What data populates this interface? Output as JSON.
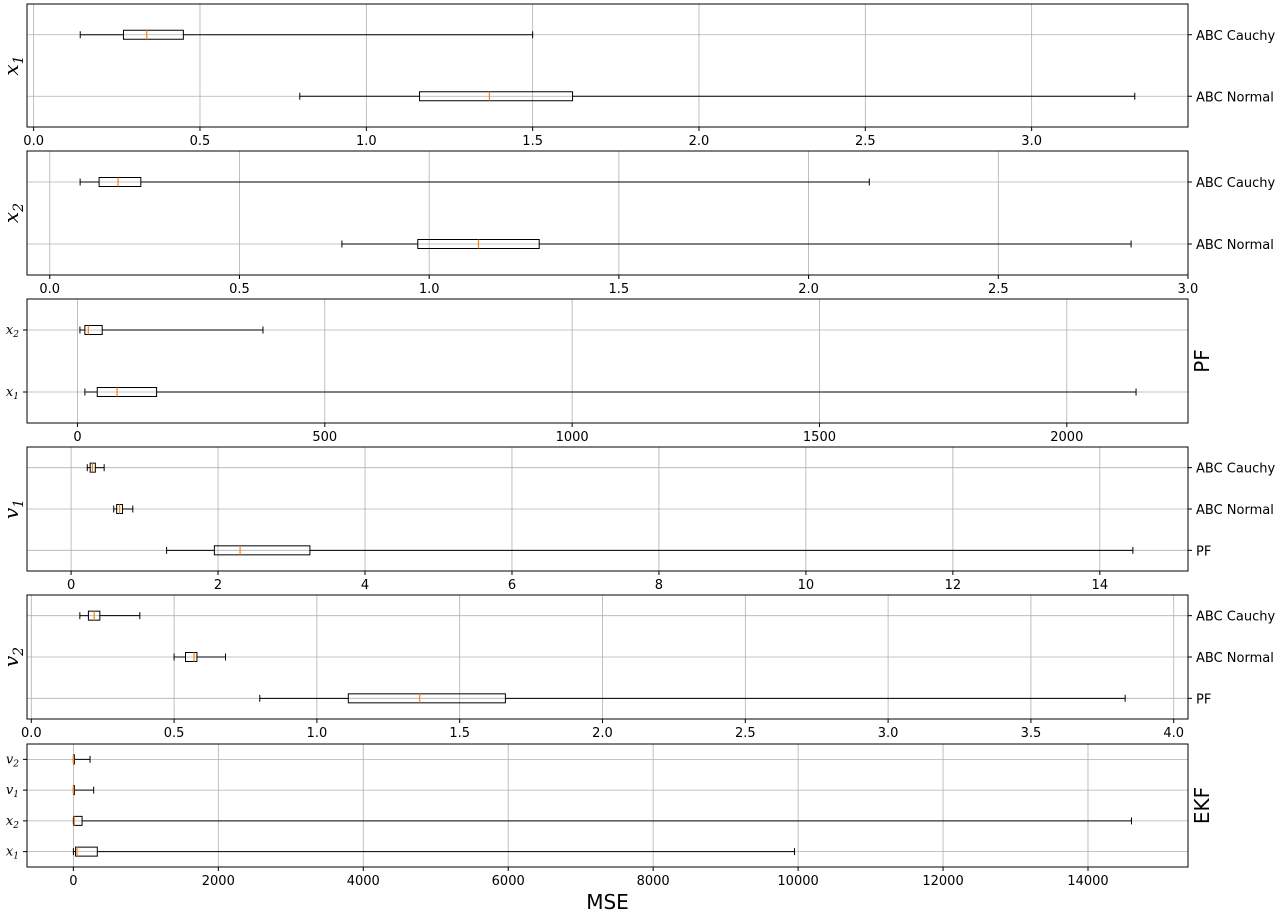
{
  "chart_data": [
    {
      "type": "boxplot",
      "orientation": "horizontal",
      "ylabel": "x",
      "ylabel_sub": "1",
      "ylabel_side": "left",
      "category_side": "right",
      "categories": [
        "ABC Normal",
        "ABC Cauchy"
      ],
      "xlim": [
        -0.02,
        3.47
      ],
      "xticks": [
        0.0,
        0.5,
        1.0,
        1.5,
        2.0,
        2.5,
        3.0
      ],
      "xtick_labels": [
        "0.0",
        "0.5",
        "1.0",
        "1.5",
        "2.0",
        "2.5",
        "3.0"
      ],
      "boxes": [
        {
          "label": "ABC Normal",
          "whisker_low": 0.8,
          "q1": 1.16,
          "median": 1.37,
          "q3": 1.62,
          "whisker_high": 3.31
        },
        {
          "label": "ABC Cauchy",
          "whisker_low": 0.14,
          "q1": 0.27,
          "median": 0.34,
          "q3": 0.45,
          "whisker_high": 1.5
        }
      ],
      "grid": true
    },
    {
      "type": "boxplot",
      "orientation": "horizontal",
      "ylabel": "x",
      "ylabel_sub": "2",
      "ylabel_side": "left",
      "category_side": "right",
      "categories": [
        "ABC Normal",
        "ABC Cauchy"
      ],
      "xlim": [
        -0.06,
        3.0
      ],
      "xticks": [
        0.0,
        0.5,
        1.0,
        1.5,
        2.0,
        2.5,
        3.0
      ],
      "xtick_labels": [
        "0.0",
        "0.5",
        "1.0",
        "1.5",
        "2.0",
        "2.5",
        "3.0"
      ],
      "boxes": [
        {
          "label": "ABC Normal",
          "whisker_low": 0.77,
          "q1": 0.97,
          "median": 1.13,
          "q3": 1.29,
          "whisker_high": 2.85
        },
        {
          "label": "ABC Cauchy",
          "whisker_low": 0.08,
          "q1": 0.13,
          "median": 0.18,
          "q3": 0.24,
          "whisker_high": 2.16
        }
      ],
      "grid": true
    },
    {
      "type": "boxplot",
      "orientation": "horizontal",
      "ylabel": "PF",
      "ylabel_side": "right",
      "category_side": "left",
      "categories": [
        {
          "base": "x",
          "sub": "1"
        },
        {
          "base": "x",
          "sub": "2"
        }
      ],
      "xlim": [
        -102,
        2245
      ],
      "xticks": [
        0,
        500,
        1000,
        1500,
        2000
      ],
      "xtick_labels": [
        "0",
        "500",
        "1000",
        "1500",
        "2000"
      ],
      "boxes": [
        {
          "label": "x1",
          "whisker_low": 15,
          "q1": 40,
          "median": 80,
          "q3": 160,
          "whisker_high": 2140
        },
        {
          "label": "x2",
          "whisker_low": 5,
          "q1": 15,
          "median": 22,
          "q3": 50,
          "whisker_high": 375
        }
      ],
      "grid": true
    },
    {
      "type": "boxplot",
      "orientation": "horizontal",
      "ylabel": "v",
      "ylabel_sub": "1",
      "ylabel_side": "left",
      "category_side": "right",
      "categories": [
        "PF",
        "ABC Normal",
        "ABC Cauchy"
      ],
      "xlim": [
        -0.6,
        15.2
      ],
      "xticks": [
        0,
        2,
        4,
        6,
        8,
        10,
        12,
        14
      ],
      "xtick_labels": [
        "0",
        "2",
        "4",
        "6",
        "8",
        "10",
        "12",
        "14"
      ],
      "boxes": [
        {
          "label": "PF",
          "whisker_low": 1.3,
          "q1": 1.95,
          "median": 2.3,
          "q3": 3.25,
          "whisker_high": 14.45
        },
        {
          "label": "ABC Normal",
          "whisker_low": 0.58,
          "q1": 0.62,
          "median": 0.66,
          "q3": 0.7,
          "whisker_high": 0.84
        },
        {
          "label": "ABC Cauchy",
          "whisker_low": 0.22,
          "q1": 0.26,
          "median": 0.29,
          "q3": 0.33,
          "whisker_high": 0.45
        }
      ],
      "grid": true
    },
    {
      "type": "boxplot",
      "orientation": "horizontal",
      "ylabel": "v",
      "ylabel_sub": "2",
      "ylabel_side": "left",
      "category_side": "right",
      "categories": [
        "PF",
        "ABC Normal",
        "ABC Cauchy"
      ],
      "xlim": [
        -0.015,
        4.05
      ],
      "xticks": [
        0.0,
        0.5,
        1.0,
        1.5,
        2.0,
        2.5,
        3.0,
        3.5,
        4.0
      ],
      "xtick_labels": [
        "0.0",
        "0.5",
        "1.0",
        "1.5",
        "2.0",
        "2.5",
        "3.0",
        "3.5",
        "4.0"
      ],
      "boxes": [
        {
          "label": "PF",
          "whisker_low": 0.8,
          "q1": 1.11,
          "median": 1.36,
          "q3": 1.66,
          "whisker_high": 3.83
        },
        {
          "label": "ABC Normal",
          "whisker_low": 0.5,
          "q1": 0.54,
          "median": 0.57,
          "q3": 0.58,
          "whisker_high": 0.68
        },
        {
          "label": "ABC Cauchy",
          "whisker_low": 0.17,
          "q1": 0.2,
          "median": 0.22,
          "q3": 0.24,
          "whisker_high": 0.38
        }
      ],
      "grid": true
    },
    {
      "type": "boxplot",
      "orientation": "horizontal",
      "ylabel": "EKF",
      "ylabel_side": "right",
      "category_side": "left",
      "categories": [
        {
          "base": "x",
          "sub": "1"
        },
        {
          "base": "x",
          "sub": "2"
        },
        {
          "base": "v",
          "sub": "1"
        },
        {
          "base": "v",
          "sub": "2"
        }
      ],
      "xlim": [
        -640,
        15380
      ],
      "xticks": [
        0,
        2000,
        4000,
        6000,
        8000,
        10000,
        12000,
        14000
      ],
      "xtick_labels": [
        "0",
        "2000",
        "4000",
        "6000",
        "8000",
        "10000",
        "12000",
        "14000"
      ],
      "xlabel": "MSE",
      "boxes": [
        {
          "label": "x1",
          "whisker_low": 0,
          "q1": 30,
          "median": 50,
          "q3": 330,
          "whisker_high": 9950
        },
        {
          "label": "x2",
          "whisker_low": 0,
          "q1": 5,
          "median": 12,
          "q3": 120,
          "whisker_high": 14600
        },
        {
          "label": "v1",
          "whisker_low": 0,
          "q1": 1,
          "median": 3,
          "q3": 10,
          "whisker_high": 280
        },
        {
          "label": "v2",
          "whisker_low": 0,
          "q1": 1,
          "median": 3,
          "q3": 10,
          "whisker_high": 230
        }
      ],
      "grid": true
    }
  ],
  "style": {
    "box_color": "#000000",
    "median_color": "#ff7f0e",
    "grid_color": "#b0b0b0"
  }
}
